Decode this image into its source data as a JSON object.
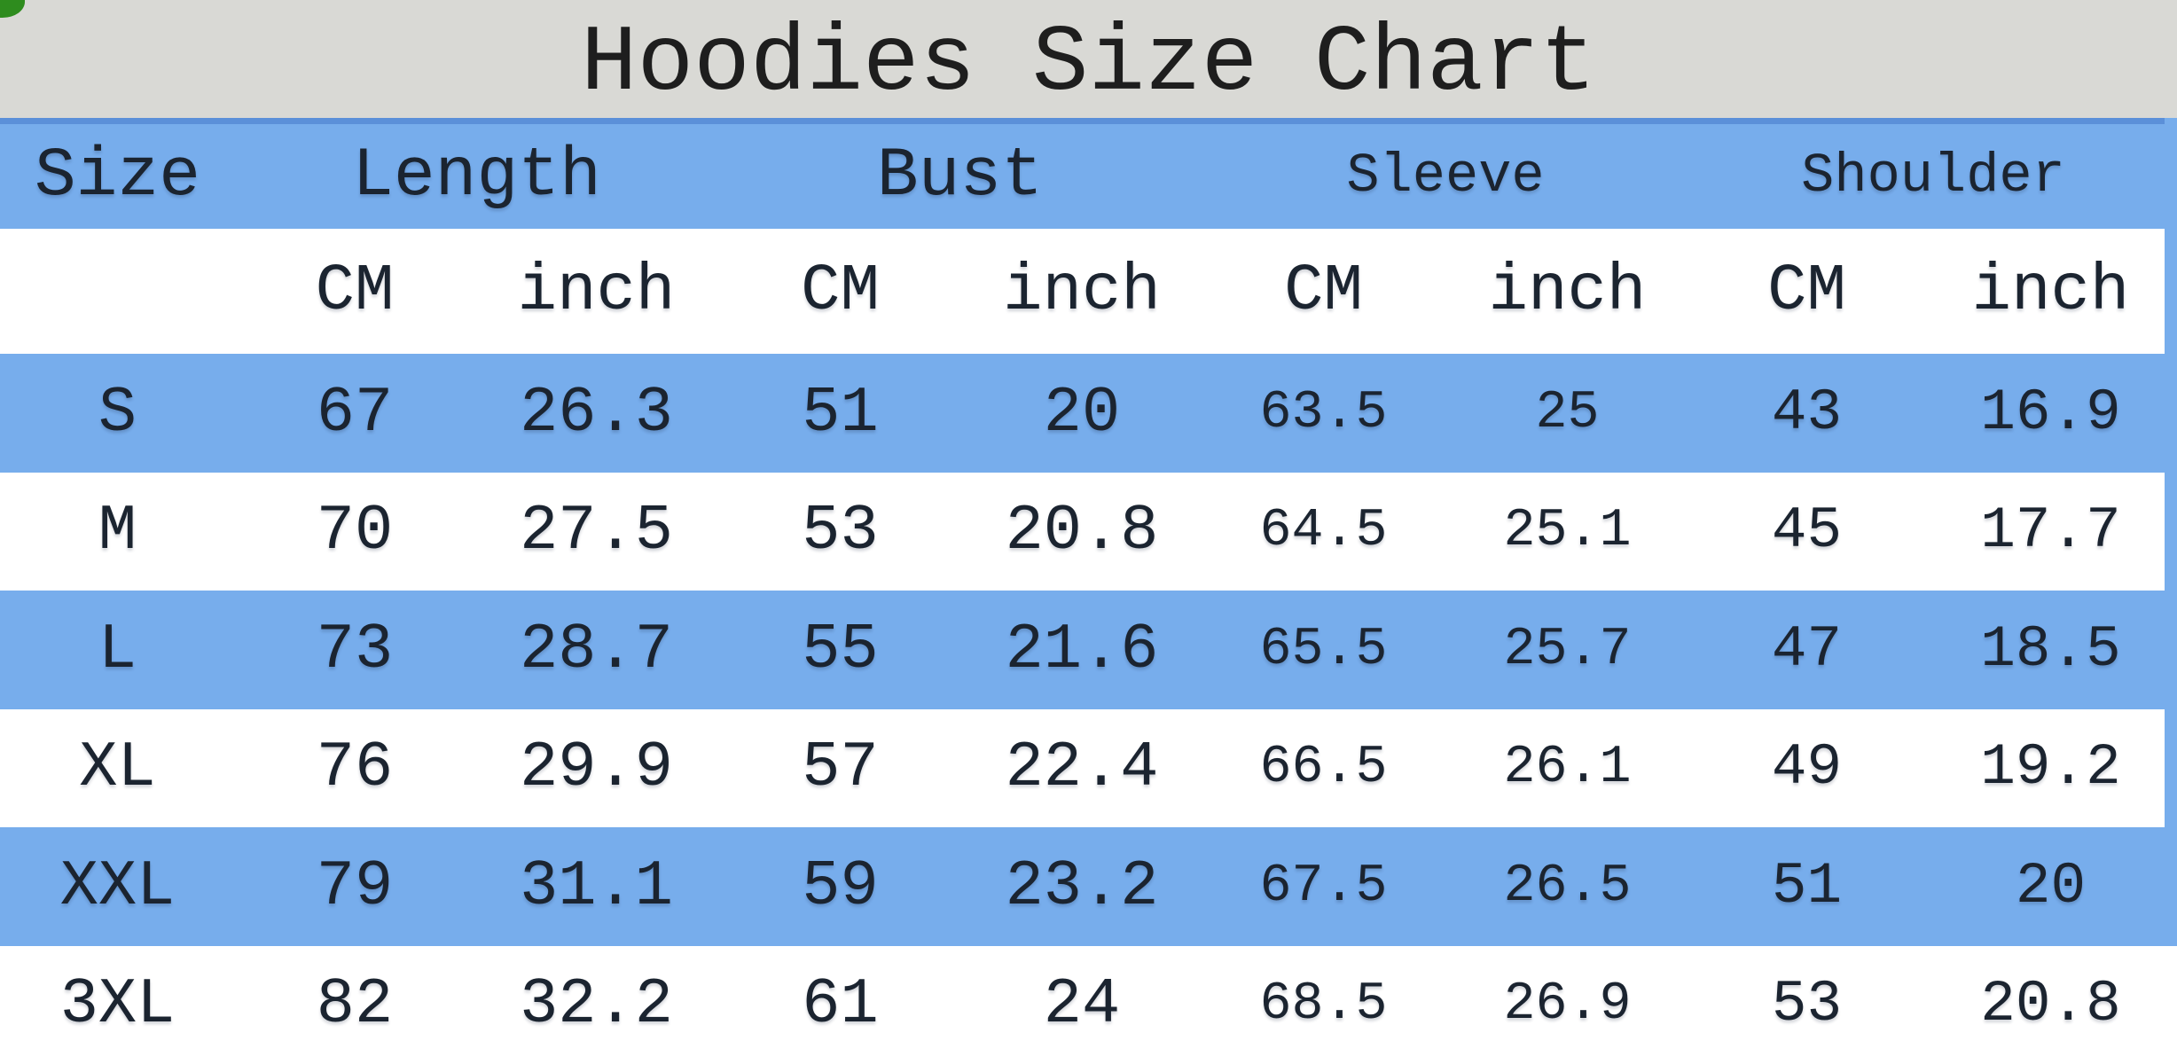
{
  "title": "Hoodies Size Chart",
  "colors": {
    "row_blue": "#77adec",
    "header_top_border": "#5b90d9",
    "title_bg": "#d9d9d5",
    "text": "#1b2430",
    "corner_green": "#2e8c1e"
  },
  "table": {
    "size_header": "Size",
    "groups": [
      {
        "label": "Length"
      },
      {
        "label": "Bust"
      },
      {
        "label": "Sleeve"
      },
      {
        "label": "Shoulder"
      }
    ],
    "unit_cm": "CM",
    "unit_inch": "inch",
    "rows": [
      {
        "size": "S",
        "cells": [
          "67",
          "26.3",
          "51",
          "20",
          "63.5",
          "25",
          "43",
          "16.9"
        ]
      },
      {
        "size": "M",
        "cells": [
          "70",
          "27.5",
          "53",
          "20.8",
          "64.5",
          "25.1",
          "45",
          "17.7"
        ]
      },
      {
        "size": "L",
        "cells": [
          "73",
          "28.7",
          "55",
          "21.6",
          "65.5",
          "25.7",
          "47",
          "18.5"
        ]
      },
      {
        "size": "XL",
        "cells": [
          "76",
          "29.9",
          "57",
          "22.4",
          "66.5",
          "26.1",
          "49",
          "19.2"
        ]
      },
      {
        "size": "XXL",
        "cells": [
          "79",
          "31.1",
          "59",
          "23.2",
          "67.5",
          "26.5",
          "51",
          "20"
        ]
      },
      {
        "size": "3XL",
        "cells": [
          "82",
          "32.2",
          "61",
          "24",
          "68.5",
          "26.9",
          "53",
          "20.8"
        ]
      }
    ]
  },
  "chart_data": {
    "type": "table",
    "title": "Hoodies Size Chart",
    "columns": [
      "Size",
      "Length CM",
      "Length inch",
      "Bust CM",
      "Bust inch",
      "Sleeve CM",
      "Sleeve inch",
      "Shoulder CM",
      "Shoulder inch"
    ],
    "rows": [
      [
        "S",
        67,
        26.3,
        51,
        20,
        63.5,
        25,
        43,
        16.9
      ],
      [
        "M",
        70,
        27.5,
        53,
        20.8,
        64.5,
        25.1,
        45,
        17.7
      ],
      [
        "L",
        73,
        28.7,
        55,
        21.6,
        65.5,
        25.7,
        47,
        18.5
      ],
      [
        "XL",
        76,
        29.9,
        57,
        22.4,
        66.5,
        26.1,
        49,
        19.2
      ],
      [
        "XXL",
        79,
        31.1,
        59,
        23.2,
        67.5,
        26.5,
        51,
        20
      ],
      [
        "3XL",
        82,
        32.2,
        61,
        24,
        68.5,
        26.9,
        53,
        20.8
      ]
    ]
  }
}
